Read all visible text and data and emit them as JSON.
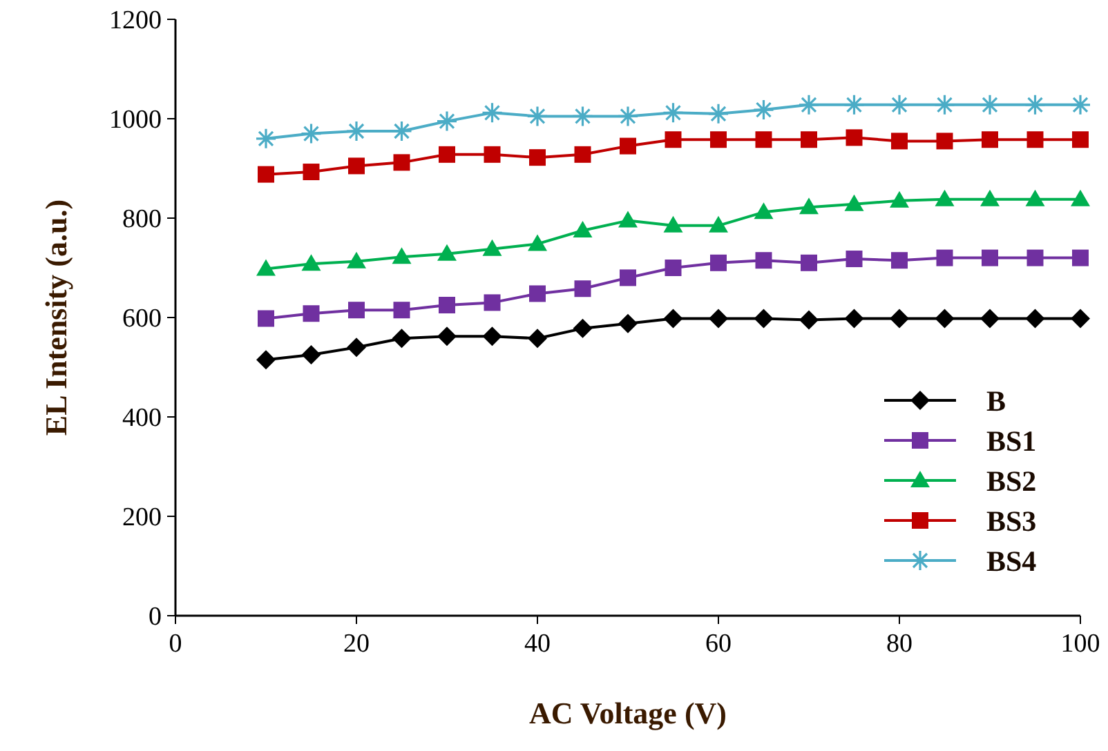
{
  "chart_data": {
    "type": "line",
    "xlabel": "AC Voltage  (V)",
    "ylabel": "EL Intensity  (a.u.)",
    "x": [
      10,
      15,
      20,
      25,
      30,
      35,
      40,
      45,
      50,
      55,
      60,
      65,
      70,
      75,
      80,
      85,
      90,
      95,
      100
    ],
    "xlim": [
      0,
      100
    ],
    "xticks": [
      0,
      20,
      40,
      60,
      80,
      100
    ],
    "ylim": [
      0,
      1200
    ],
    "yticks": [
      0,
      200,
      400,
      600,
      800,
      1000,
      1200
    ],
    "grid": false,
    "legend": "bottom right",
    "line_style": "solid",
    "series": [
      {
        "name": "B",
        "color": "#000000",
        "marker": "diamond",
        "values": [
          515,
          525,
          540,
          558,
          562,
          562,
          558,
          578,
          588,
          598,
          598,
          598,
          595,
          598,
          598,
          598,
          598,
          598,
          598
        ]
      },
      {
        "name": "BS1",
        "color": "#7030a0",
        "marker": "square",
        "values": [
          598,
          608,
          615,
          615,
          625,
          630,
          648,
          658,
          680,
          700,
          710,
          715,
          710,
          718,
          715,
          720,
          720,
          720,
          720
        ]
      },
      {
        "name": "BS2",
        "color": "#00b050",
        "marker": "triangle",
        "values": [
          698,
          708,
          713,
          722,
          728,
          738,
          748,
          775,
          795,
          785,
          785,
          812,
          822,
          828,
          835,
          838,
          838,
          838,
          838
        ]
      },
      {
        "name": "BS3",
        "color": "#c00000",
        "marker": "square",
        "values": [
          888,
          893,
          905,
          912,
          928,
          928,
          922,
          928,
          945,
          958,
          958,
          958,
          958,
          962,
          955,
          955,
          958,
          958,
          958
        ]
      },
      {
        "name": "BS4",
        "color": "#4bacc6",
        "marker": "cross",
        "values": [
          960,
          970,
          975,
          975,
          995,
          1012,
          1005,
          1005,
          1005,
          1012,
          1010,
          1018,
          1028,
          1028,
          1028,
          1028,
          1028,
          1028,
          1028
        ]
      }
    ]
  }
}
